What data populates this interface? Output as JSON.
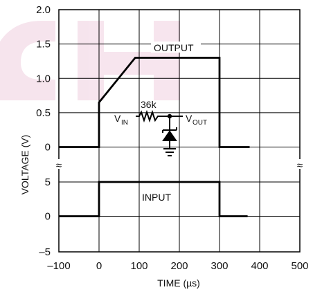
{
  "chart_data": {
    "type": "line",
    "xlabel": "TIME (µs)",
    "ylabel": "VOLTAGE (V)",
    "xlim": [
      -100,
      500
    ],
    "x_ticks": [
      "–100",
      "0",
      "100",
      "200",
      "300",
      "400",
      "500"
    ],
    "grid": true,
    "panels": [
      {
        "name": "OUTPUT",
        "ylim": [
          0,
          2.0
        ],
        "y_ticks": [
          "2.0",
          "1.5",
          "1.0",
          "0.5",
          "0"
        ],
        "series": [
          {
            "name": "OUTPUT",
            "x": [
              -100,
              0,
              0,
              90,
              300,
              300,
              375
            ],
            "y": [
              0,
              0,
              0.65,
              1.3,
              1.3,
              0,
              0
            ]
          }
        ]
      },
      {
        "name": "INPUT",
        "ylim": [
          -5,
          5
        ],
        "y_ticks": [
          "5",
          "0",
          "–5"
        ],
        "series": [
          {
            "name": "INPUT",
            "x": [
              -100,
              0,
              0,
              300,
              300,
              370
            ],
            "y": [
              0,
              0,
              5,
              5,
              0,
              0
            ]
          }
        ]
      }
    ],
    "axis_break_symbol": "≈",
    "schematic": {
      "input_label": "V",
      "input_sub": "IN",
      "resistor": "36k",
      "output_label": "V",
      "output_sub": "OUT"
    }
  },
  "colors": {
    "line": "#000000",
    "grid": "#000000",
    "watermark": "#c0357a"
  }
}
